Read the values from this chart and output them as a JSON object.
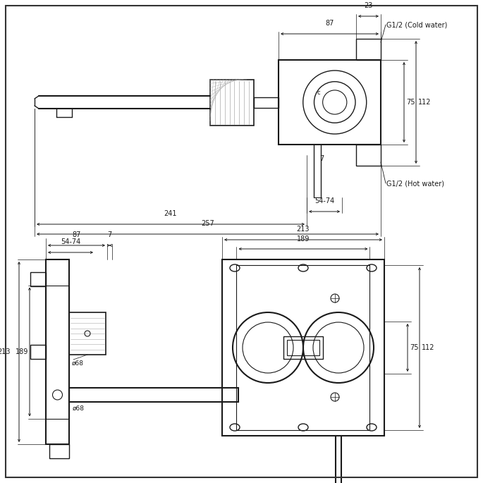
{
  "bg_color": "#ffffff",
  "lc": "#1a1a1a",
  "dc": "#1a1a1a",
  "gray": "#aaaaaa",
  "fig_w": 6.85,
  "fig_h": 6.85,
  "dpi": 100,
  "ann": {
    "87": "87",
    "23": "23",
    "cold": "G1/2 (Cold water)",
    "hot": "G1/2 (Hot water)",
    "75": "75",
    "112": "112",
    "7": "7",
    "5474": "54-74",
    "241": "241",
    "257": "257",
    "213": "213",
    "189": "189",
    "d68": "ø68"
  }
}
